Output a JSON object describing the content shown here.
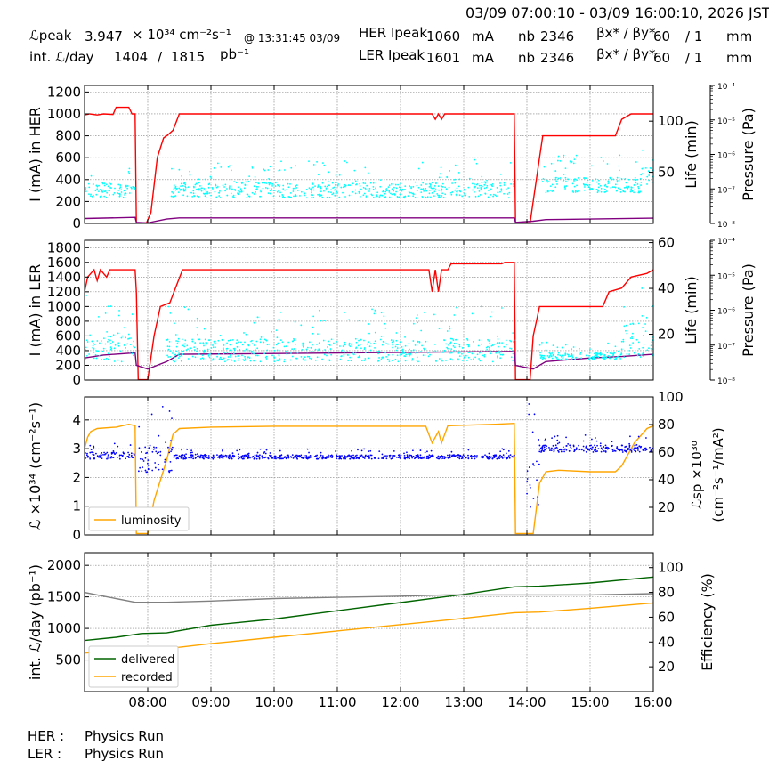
{
  "header": {
    "time_range": "03/09 07:00:10 - 03/09 16:00:10, 2026 JST",
    "lpeak_label": "ℒpeak",
    "lpeak_value": "3.947",
    "lpeak_unit": "× 10³⁴ cm⁻²s⁻¹",
    "lpeak_time": "@ 13:31:45 03/09",
    "intl_label": "int. ℒ/day",
    "intl_recorded": "1404",
    "intl_sep": "/",
    "intl_delivered": "1815",
    "intl_unit": "pb⁻¹",
    "her_ipeak_label": "HER Ipeak",
    "her_ipeak_value": "1060",
    "her_ipeak_unit": "mA",
    "her_nb_label": "nb",
    "her_nb_value": "2346",
    "her_beta_label": "βx* / βy*",
    "her_beta_x": "60",
    "her_beta_y": "/ 1",
    "her_beta_unit": "mm",
    "ler_ipeak_label": "LER Ipeak",
    "ler_ipeak_value": "1601",
    "ler_ipeak_unit": "mA",
    "ler_nb_label": "nb",
    "ler_nb_value": "2346",
    "ler_beta_label": "βx* / βy*",
    "ler_beta_x": "60",
    "ler_beta_y": "/ 1",
    "ler_beta_unit": "mm"
  },
  "footer": {
    "her_label": "HER :",
    "her_status": "Physics Run",
    "ler_label": "LER :",
    "ler_status": "Physics Run"
  },
  "colors": {
    "red": "#ff0000",
    "purple": "#800080",
    "cyan": "#00ffff",
    "orange": "#ffa500",
    "blue": "#0000ff",
    "green": "#006400",
    "gray": "#808080",
    "grid": "#808080"
  },
  "chart_data": [
    {
      "id": "her",
      "type": "line",
      "ylabel": "I (mA) in HER",
      "y2label": "Life (min)",
      "y3label": "Pressure (Pa)",
      "ylim": [
        0,
        1260
      ],
      "yticks": [
        0,
        200,
        400,
        600,
        800,
        1000,
        1200
      ],
      "y2lim": [
        0,
        135
      ],
      "y2ticks": [
        50,
        100
      ],
      "y3lim": [
        1e-08,
        0.0001
      ],
      "y3ticks": [
        "10⁻⁸",
        "10⁻⁷",
        "10⁻⁶",
        "10⁻⁵",
        "10⁻⁴"
      ],
      "series": [
        {
          "role": "current",
          "color": "red",
          "points": [
            [
              7.0,
              990
            ],
            [
              7.08,
              1000
            ],
            [
              7.2,
              990
            ],
            [
              7.3,
              1000
            ],
            [
              7.45,
              995
            ],
            [
              7.5,
              1060
            ],
            [
              7.7,
              1060
            ],
            [
              7.75,
              1000
            ],
            [
              7.8,
              1000
            ],
            [
              7.82,
              5
            ],
            [
              7.98,
              5
            ],
            [
              8.05,
              100
            ],
            [
              8.15,
              600
            ],
            [
              8.25,
              780
            ],
            [
              8.3,
              800
            ],
            [
              8.4,
              850
            ],
            [
              8.5,
              1000
            ],
            [
              10.0,
              1000
            ],
            [
              12.5,
              1000
            ],
            [
              12.55,
              950
            ],
            [
              12.6,
              1000
            ],
            [
              12.65,
              950
            ],
            [
              12.7,
              1000
            ],
            [
              13.8,
              1000
            ],
            [
              13.82,
              5
            ],
            [
              14.05,
              5
            ],
            [
              14.2,
              600
            ],
            [
              14.25,
              800
            ],
            [
              15.2,
              800
            ],
            [
              15.4,
              800
            ],
            [
              15.5,
              950
            ],
            [
              15.65,
              1000
            ],
            [
              16.0,
              1000
            ]
          ]
        },
        {
          "role": "pressure",
          "color": "purple",
          "points": [
            [
              7.0,
              45
            ],
            [
              7.8,
              55
            ],
            [
              7.82,
              10
            ],
            [
              8.0,
              5
            ],
            [
              8.3,
              40
            ],
            [
              8.5,
              50
            ],
            [
              13.8,
              50
            ],
            [
              13.82,
              10
            ],
            [
              14.1,
              20
            ],
            [
              14.3,
              35
            ],
            [
              15.0,
              40
            ],
            [
              16.0,
              48
            ]
          ]
        },
        {
          "role": "life",
          "color": "cyan",
          "bands": [
            [
              7.0,
              7.8,
              25,
              40
            ],
            [
              8.35,
              13.8,
              25,
              40
            ],
            [
              14.2,
              15.8,
              30,
              45
            ],
            [
              15.8,
              16.0,
              35,
              55
            ]
          ]
        }
      ]
    },
    {
      "id": "ler",
      "type": "line",
      "ylabel": "I (mA) in LER",
      "y2label": "Life (min)",
      "y3label": "Pressure (Pa)",
      "ylim": [
        0,
        1900
      ],
      "yticks": [
        0,
        200,
        400,
        600,
        800,
        1000,
        1200,
        1400,
        1600,
        1800
      ],
      "y2lim": [
        0,
        61
      ],
      "y2ticks": [
        20,
        40,
        60
      ],
      "y3lim": [
        1e-08,
        0.0001
      ],
      "y3ticks": [
        "10⁻⁸",
        "10⁻⁷",
        "10⁻⁶",
        "10⁻⁵",
        "10⁻⁴"
      ],
      "series": [
        {
          "role": "current",
          "color": "red",
          "points": [
            [
              7.0,
              1200
            ],
            [
              7.05,
              1400
            ],
            [
              7.15,
              1500
            ],
            [
              7.2,
              1350
            ],
            [
              7.25,
              1500
            ],
            [
              7.35,
              1400
            ],
            [
              7.4,
              1500
            ],
            [
              7.8,
              1500
            ],
            [
              7.82,
              1200
            ],
            [
              7.85,
              5
            ],
            [
              8.0,
              5
            ],
            [
              8.1,
              600
            ],
            [
              8.2,
              1000
            ],
            [
              8.35,
              1050
            ],
            [
              8.55,
              1500
            ],
            [
              12.45,
              1500
            ],
            [
              12.5,
              1200
            ],
            [
              12.55,
              1500
            ],
            [
              12.6,
              1200
            ],
            [
              12.65,
              1500
            ],
            [
              12.75,
              1500
            ],
            [
              12.8,
              1580
            ],
            [
              13.6,
              1580
            ],
            [
              13.65,
              1600
            ],
            [
              13.8,
              1600
            ],
            [
              13.82,
              5
            ],
            [
              14.05,
              5
            ],
            [
              14.1,
              600
            ],
            [
              14.15,
              800
            ],
            [
              14.2,
              1000
            ],
            [
              15.2,
              1000
            ],
            [
              15.3,
              1200
            ],
            [
              15.5,
              1250
            ],
            [
              15.65,
              1400
            ],
            [
              15.9,
              1450
            ],
            [
              16.0,
              1500
            ]
          ]
        },
        {
          "role": "pressure",
          "color": "purple",
          "points": [
            [
              7.0,
              300
            ],
            [
              7.3,
              340
            ],
            [
              7.8,
              370
            ],
            [
              7.82,
              200
            ],
            [
              8.0,
              150
            ],
            [
              8.3,
              250
            ],
            [
              8.5,
              350
            ],
            [
              13.8,
              390
            ],
            [
              13.82,
              200
            ],
            [
              14.1,
              150
            ],
            [
              14.3,
              250
            ],
            [
              15.0,
              300
            ],
            [
              15.5,
              320
            ],
            [
              16.0,
              350
            ]
          ]
        },
        {
          "role": "life",
          "color": "cyan",
          "bands": [
            [
              7.0,
              7.8,
              8,
              20
            ],
            [
              8.3,
              13.8,
              8,
              18
            ],
            [
              14.2,
              15.5,
              9,
              12
            ],
            [
              15.5,
              16.0,
              10,
              25
            ]
          ]
        }
      ]
    },
    {
      "id": "lumi",
      "type": "line",
      "ylabel": "ℒ ×10³⁴ (cm⁻²s⁻¹)",
      "y2label": "ℒsp ×10³⁰",
      "y2label_b": "(cm⁻²s⁻¹/mA²)",
      "legend": [
        "luminosity"
      ],
      "ylim": [
        0,
        4.8
      ],
      "yticks": [
        0,
        1,
        2,
        3,
        4
      ],
      "y2lim": [
        0,
        100
      ],
      "y2ticks": [
        20,
        40,
        60,
        80,
        100
      ],
      "series": [
        {
          "name": "luminosity",
          "color": "orange",
          "points": [
            [
              7.0,
              3.0
            ],
            [
              7.05,
              3.4
            ],
            [
              7.1,
              3.6
            ],
            [
              7.2,
              3.7
            ],
            [
              7.5,
              3.75
            ],
            [
              7.7,
              3.85
            ],
            [
              7.8,
              3.8
            ],
            [
              7.82,
              0.05
            ],
            [
              8.0,
              0.05
            ],
            [
              8.1,
              1.2
            ],
            [
              8.3,
              2.6
            ],
            [
              8.4,
              3.5
            ],
            [
              8.5,
              3.7
            ],
            [
              9.0,
              3.75
            ],
            [
              10.0,
              3.78
            ],
            [
              12.4,
              3.78
            ],
            [
              12.5,
              3.2
            ],
            [
              12.6,
              3.6
            ],
            [
              12.65,
              3.2
            ],
            [
              12.75,
              3.8
            ],
            [
              13.5,
              3.85
            ],
            [
              13.8,
              3.88
            ],
            [
              13.82,
              0.05
            ],
            [
              14.1,
              0.05
            ],
            [
              14.2,
              1.8
            ],
            [
              14.3,
              2.2
            ],
            [
              14.5,
              2.25
            ],
            [
              15.0,
              2.2
            ],
            [
              15.4,
              2.2
            ],
            [
              15.5,
              2.4
            ],
            [
              15.7,
              3.2
            ],
            [
              15.9,
              3.7
            ],
            [
              16.0,
              3.8
            ]
          ]
        },
        {
          "role": "specific",
          "color": "blue",
          "bands": [
            [
              7.0,
              7.8,
              55,
              60
            ],
            [
              7.85,
              8.4,
              45,
              65
            ],
            [
              8.4,
              13.8,
              55,
              58
            ],
            [
              14.0,
              14.2,
              20,
              55
            ],
            [
              14.2,
              16.0,
              60,
              65
            ]
          ]
        }
      ]
    },
    {
      "id": "intlumi",
      "type": "line",
      "ylabel": "int. ℒ/day (pb⁻¹)",
      "y2label": "Efficiency (%)",
      "legend": [
        "delivered",
        "recorded"
      ],
      "ylim": [
        0,
        2200
      ],
      "yticks": [
        500,
        1000,
        1500,
        2000
      ],
      "y2lim": [
        0,
        112
      ],
      "y2ticks": [
        20,
        40,
        60,
        80,
        100
      ],
      "x": [
        "08:00",
        "09:00",
        "10:00",
        "11:00",
        "12:00",
        "13:00",
        "14:00",
        "15:00",
        "16:00"
      ],
      "xlim": [
        7.0,
        16.0
      ],
      "series": [
        {
          "name": "delivered",
          "color": "green",
          "points": [
            [
              7.0,
              810
            ],
            [
              7.5,
              860
            ],
            [
              7.9,
              920
            ],
            [
              8.3,
              930
            ],
            [
              9.0,
              1050
            ],
            [
              10.0,
              1150
            ],
            [
              11.0,
              1280
            ],
            [
              12.0,
              1410
            ],
            [
              13.0,
              1540
            ],
            [
              13.8,
              1660
            ],
            [
              14.2,
              1670
            ],
            [
              15.0,
              1720
            ],
            [
              16.0,
              1815
            ]
          ]
        },
        {
          "name": "recorded",
          "color": "orange",
          "points": [
            [
              7.0,
              610
            ],
            [
              7.5,
              640
            ],
            [
              7.9,
              650
            ],
            [
              8.3,
              680
            ],
            [
              9.0,
              760
            ],
            [
              10.0,
              860
            ],
            [
              11.0,
              960
            ],
            [
              12.0,
              1060
            ],
            [
              12.8,
              1140
            ],
            [
              13.8,
              1250
            ],
            [
              14.2,
              1260
            ],
            [
              15.0,
              1320
            ],
            [
              16.0,
              1404
            ]
          ]
        },
        {
          "role": "efficiency",
          "color": "gray",
          "points": [
            [
              7.0,
              80
            ],
            [
              7.3,
              77
            ],
            [
              7.8,
              72
            ],
            [
              8.3,
              72
            ],
            [
              9.0,
              73
            ],
            [
              10.0,
              75
            ],
            [
              11.0,
              76
            ],
            [
              12.0,
              77
            ],
            [
              12.7,
              78
            ],
            [
              13.8,
              78
            ],
            [
              14.2,
              78
            ],
            [
              15.0,
              78
            ],
            [
              16.0,
              79
            ]
          ]
        }
      ]
    }
  ]
}
